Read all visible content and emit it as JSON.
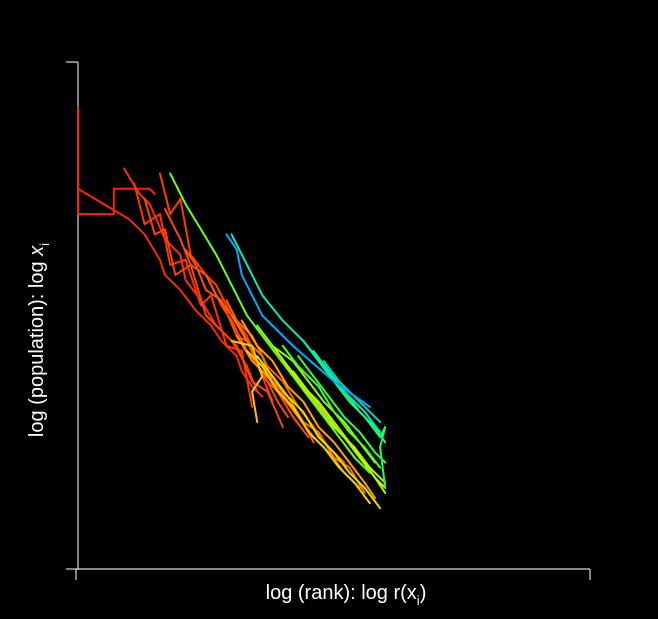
{
  "chart_data": {
    "type": "line",
    "title": "",
    "xlabel": {
      "main": "log (rank): log r(x",
      "sub": "i",
      "end": ")"
    },
    "ylabel": {
      "main": "log (population): log ",
      "var": "x",
      "sub": "i"
    },
    "xlim": [
      0,
      1
    ],
    "ylim": [
      0,
      1
    ],
    "grid": false,
    "legend": "none",
    "background": "#000000",
    "axis_color": "#d9d9d9",
    "color_scale": [
      "#ff2200",
      "#ff5a00",
      "#ffc800",
      "#b4ff00",
      "#32ff32",
      "#00f0b4",
      "#00aaff"
    ],
    "series": [
      {
        "color_t": 0.0,
        "x": [
          0.0,
          0.0,
          0.07,
          0.07,
          0.14,
          0.15
        ],
        "y": [
          0.91,
          0.7,
          0.7,
          0.75,
          0.75,
          0.74
        ]
      },
      {
        "color_t": 0.02,
        "x": [
          0.0,
          0.05,
          0.1,
          0.13,
          0.16,
          0.17,
          0.2,
          0.23,
          0.26,
          0.28,
          0.31,
          0.32,
          0.34,
          0.36
        ],
        "y": [
          0.75,
          0.72,
          0.69,
          0.66,
          0.61,
          0.58,
          0.55,
          0.51,
          0.48,
          0.45,
          0.42,
          0.39,
          0.36,
          0.34
        ]
      },
      {
        "color_t": 0.04,
        "x": [
          0.09,
          0.12,
          0.14,
          0.17,
          0.2,
          0.21,
          0.24,
          0.27,
          0.3,
          0.33,
          0.35
        ],
        "y": [
          0.79,
          0.74,
          0.72,
          0.65,
          0.62,
          0.57,
          0.53,
          0.48,
          0.45,
          0.4,
          0.35
        ]
      },
      {
        "color_t": 0.06,
        "x": [
          0.11,
          0.13,
          0.16,
          0.18,
          0.21,
          0.24,
          0.26,
          0.29,
          0.32,
          0.34
        ],
        "y": [
          0.76,
          0.68,
          0.7,
          0.6,
          0.61,
          0.52,
          0.54,
          0.44,
          0.43,
          0.32
        ]
      },
      {
        "color_t": 0.08,
        "x": [
          0.16,
          0.18,
          0.2,
          0.22,
          0.25,
          0.27,
          0.3,
          0.33,
          0.36,
          0.38
        ],
        "y": [
          0.78,
          0.7,
          0.73,
          0.62,
          0.58,
          0.56,
          0.5,
          0.46,
          0.38,
          0.33
        ]
      },
      {
        "color_t": 0.1,
        "x": [
          0.13,
          0.15,
          0.17,
          0.19,
          0.22,
          0.25,
          0.28,
          0.31,
          0.34,
          0.37,
          0.4
        ],
        "y": [
          0.73,
          0.66,
          0.67,
          0.58,
          0.6,
          0.5,
          0.47,
          0.44,
          0.37,
          0.35,
          0.28
        ]
      },
      {
        "color_t": 0.12,
        "x": [
          0.17,
          0.2,
          0.22,
          0.25,
          0.28,
          0.3,
          0.33,
          0.36,
          0.39,
          0.41
        ],
        "y": [
          0.71,
          0.65,
          0.6,
          0.58,
          0.52,
          0.49,
          0.43,
          0.39,
          0.33,
          0.3
        ]
      },
      {
        "color_t": 0.14,
        "x": [
          0.21,
          0.23,
          0.25,
          0.28,
          0.31,
          0.33,
          0.36,
          0.39,
          0.42,
          0.45
        ],
        "y": [
          0.63,
          0.6,
          0.55,
          0.53,
          0.46,
          0.45,
          0.38,
          0.35,
          0.3,
          0.26
        ]
      },
      {
        "color_t": 0.16,
        "x": [
          0.25,
          0.27,
          0.3,
          0.32,
          0.35,
          0.38,
          0.41,
          0.44,
          0.46
        ],
        "y": [
          0.58,
          0.54,
          0.5,
          0.47,
          0.41,
          0.38,
          0.33,
          0.29,
          0.25
        ]
      },
      {
        "color_t": 0.18,
        "x": [
          0.29,
          0.31,
          0.34,
          0.37,
          0.4,
          0.43,
          0.46,
          0.49,
          0.52
        ],
        "y": [
          0.53,
          0.49,
          0.46,
          0.4,
          0.37,
          0.32,
          0.28,
          0.24,
          0.21
        ]
      },
      {
        "color_t": 0.2,
        "x": [
          0.3,
          0.33,
          0.36,
          0.38,
          0.41,
          0.44,
          0.47,
          0.5,
          0.53,
          0.56
        ],
        "y": [
          0.5,
          0.45,
          0.42,
          0.37,
          0.34,
          0.29,
          0.27,
          0.22,
          0.2,
          0.15
        ]
      },
      {
        "color_t": 0.24,
        "x": [
          0.31,
          0.34,
          0.37,
          0.4,
          0.43,
          0.46,
          0.49,
          0.52,
          0.55
        ],
        "y": [
          0.46,
          0.41,
          0.38,
          0.34,
          0.3,
          0.26,
          0.23,
          0.19,
          0.16
        ]
      },
      {
        "color_t": 0.28,
        "x": [
          0.32,
          0.35,
          0.38,
          0.41,
          0.44,
          0.47,
          0.5,
          0.53,
          0.56,
          0.58
        ],
        "y": [
          0.49,
          0.44,
          0.41,
          0.36,
          0.33,
          0.28,
          0.25,
          0.21,
          0.17,
          0.14
        ]
      },
      {
        "color_t": 0.33,
        "x": [
          0.3,
          0.34,
          0.36,
          0.34,
          0.35
        ],
        "y": [
          0.45,
          0.44,
          0.38,
          0.35,
          0.29
        ]
      },
      {
        "color_t": 0.36,
        "x": [
          0.33,
          0.36,
          0.39,
          0.42,
          0.45,
          0.48,
          0.51,
          0.54,
          0.57
        ],
        "y": [
          0.43,
          0.4,
          0.35,
          0.32,
          0.27,
          0.24,
          0.2,
          0.17,
          0.13
        ]
      },
      {
        "color_t": 0.4,
        "x": [
          0.35,
          0.38,
          0.41,
          0.44,
          0.47,
          0.5,
          0.53,
          0.56,
          0.59
        ],
        "y": [
          0.42,
          0.38,
          0.34,
          0.31,
          0.26,
          0.23,
          0.19,
          0.16,
          0.12
        ]
      },
      {
        "color_t": 0.44,
        "x": [
          0.38,
          0.41,
          0.44,
          0.47,
          0.5,
          0.53,
          0.56,
          0.58,
          0.6
        ],
        "y": [
          0.44,
          0.4,
          0.36,
          0.33,
          0.29,
          0.25,
          0.21,
          0.18,
          0.15
        ]
      },
      {
        "color_t": 0.48,
        "x": [
          0.4,
          0.43,
          0.46,
          0.49,
          0.52,
          0.55,
          0.58,
          0.6
        ],
        "y": [
          0.41,
          0.37,
          0.33,
          0.29,
          0.26,
          0.22,
          0.18,
          0.16
        ]
      },
      {
        "color_t": 0.52,
        "x": [
          0.42,
          0.45,
          0.48,
          0.51,
          0.54,
          0.57,
          0.6
        ],
        "y": [
          0.39,
          0.35,
          0.31,
          0.27,
          0.24,
          0.2,
          0.17
        ]
      },
      {
        "color_t": 0.56,
        "x": [
          0.35,
          0.38,
          0.42,
          0.45,
          0.48,
          0.52,
          0.55,
          0.58
        ],
        "y": [
          0.48,
          0.44,
          0.41,
          0.37,
          0.33,
          0.29,
          0.25,
          0.21
        ]
      },
      {
        "color_t": 0.6,
        "x": [
          0.18,
          0.21,
          0.24,
          0.27,
          0.3,
          0.33,
          0.36,
          0.39,
          0.42,
          0.45,
          0.48,
          0.51,
          0.54,
          0.57
        ],
        "y": [
          0.78,
          0.72,
          0.67,
          0.62,
          0.56,
          0.5,
          0.46,
          0.42,
          0.38,
          0.34,
          0.3,
          0.26,
          0.22,
          0.19
        ]
      },
      {
        "color_t": 0.64,
        "x": [
          0.4,
          0.43,
          0.47,
          0.5,
          0.53,
          0.56,
          0.59
        ],
        "y": [
          0.44,
          0.4,
          0.36,
          0.31,
          0.27,
          0.24,
          0.2
        ]
      },
      {
        "color_t": 0.68,
        "x": [
          0.43,
          0.46,
          0.49,
          0.52,
          0.55,
          0.58,
          0.6
        ],
        "y": [
          0.42,
          0.38,
          0.34,
          0.3,
          0.27,
          0.23,
          0.21
        ]
      },
      {
        "color_t": 0.72,
        "x": [
          0.44,
          0.47,
          0.5,
          0.53,
          0.56,
          0.59,
          0.6,
          0.59,
          0.6
        ],
        "y": [
          0.45,
          0.41,
          0.37,
          0.33,
          0.3,
          0.26,
          0.28,
          0.24,
          0.16
        ]
      },
      {
        "color_t": 0.78,
        "x": [
          0.46,
          0.49,
          0.52,
          0.55,
          0.58,
          0.6
        ],
        "y": [
          0.43,
          0.39,
          0.35,
          0.31,
          0.28,
          0.25
        ]
      },
      {
        "color_t": 0.84,
        "x": [
          0.3,
          0.33,
          0.36,
          0.4,
          0.44,
          0.48,
          0.52,
          0.56,
          0.59
        ],
        "y": [
          0.66,
          0.6,
          0.54,
          0.49,
          0.45,
          0.4,
          0.35,
          0.31,
          0.27
        ]
      },
      {
        "color_t": 0.9,
        "x": [
          0.48,
          0.51,
          0.54,
          0.57,
          0.59
        ],
        "y": [
          0.41,
          0.37,
          0.34,
          0.31,
          0.29
        ]
      },
      {
        "color_t": 1.0,
        "x": [
          0.29,
          0.31,
          0.32,
          0.36,
          0.42,
          0.5,
          0.57
        ],
        "y": [
          0.66,
          0.63,
          0.58,
          0.5,
          0.44,
          0.37,
          0.32
        ]
      }
    ]
  }
}
